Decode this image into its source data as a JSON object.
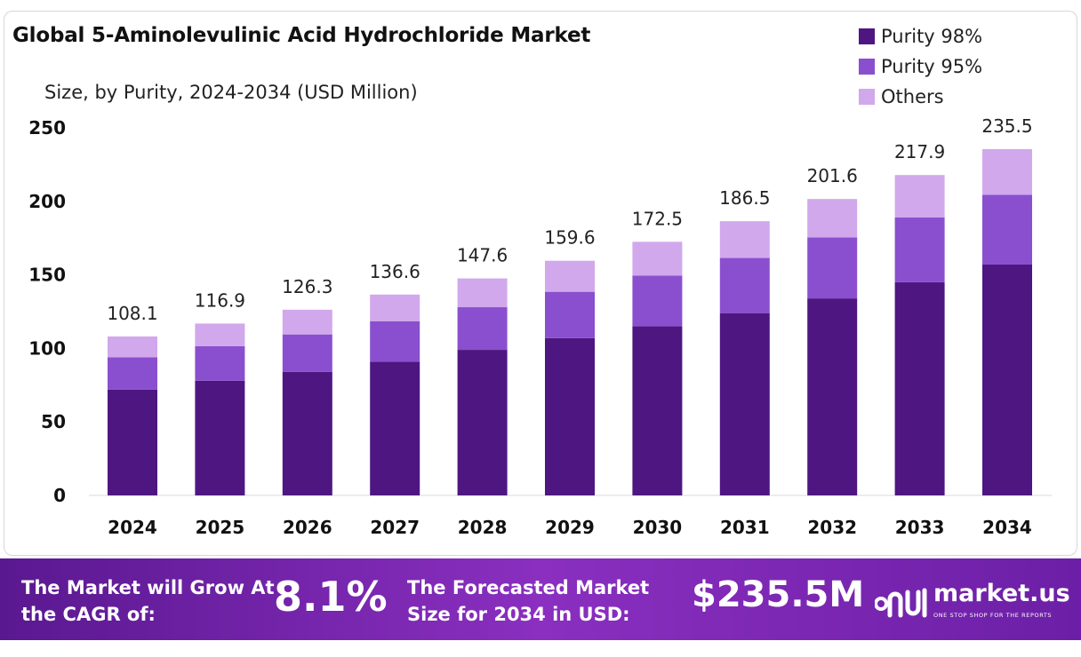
{
  "chart_data": {
    "type": "bar",
    "stacked": true,
    "title": "Global 5-Aminolevulinic Acid Hydrochloride Market",
    "subtitle": "Size, by Purity, 2024-2034 (USD Million)",
    "categories": [
      "2024",
      "2025",
      "2026",
      "2027",
      "2028",
      "2029",
      "2030",
      "2031",
      "2032",
      "2033",
      "2034"
    ],
    "series": [
      {
        "name": "Purity 98%",
        "color": "#4e1681",
        "values": [
          72.0,
          78.0,
          84.0,
          91.0,
          99.0,
          107.0,
          115.0,
          124.0,
          134.0,
          145.0,
          157.0
        ]
      },
      {
        "name": "Purity 95%",
        "color": "#8a4fcf",
        "values": [
          22.0,
          23.5,
          25.5,
          27.5,
          29.0,
          31.5,
          34.5,
          37.5,
          41.5,
          44.0,
          47.5
        ]
      },
      {
        "name": "Others",
        "color": "#d1a8ec",
        "values": [
          14.1,
          15.4,
          16.8,
          18.1,
          19.6,
          21.1,
          23.0,
          25.0,
          26.1,
          28.9,
          31.0
        ]
      }
    ],
    "totals": [
      "108.1",
      "116.9",
      "126.3",
      "136.6",
      "147.6",
      "159.6",
      "172.5",
      "186.5",
      "201.6",
      "217.9",
      "235.5"
    ],
    "ylim": [
      0,
      250
    ],
    "yticks": [
      0,
      50,
      100,
      150,
      200,
      250
    ],
    "xlabel": "",
    "ylabel": "",
    "grid": false,
    "legend_position": "top-right"
  },
  "footer": {
    "cagr_label": "The Market will Grow At the CAGR of:",
    "cagr_value": "8.1%",
    "forecast_label": "The Forecasted Market Size for 2034 in USD:",
    "forecast_value": "$235.5M",
    "brand_name": "market.us",
    "brand_tagline": "ONE STOP SHOP FOR THE REPORTS",
    "brand_icon": "market-us-logo-icon"
  }
}
